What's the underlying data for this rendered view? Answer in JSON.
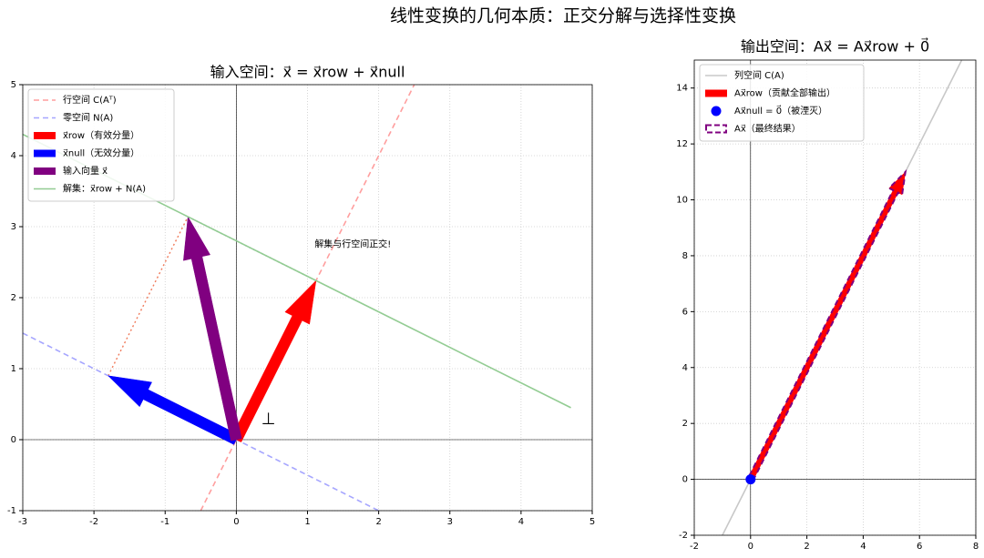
{
  "title": "线性变换的几何本质：正交分解与选择性变换",
  "chart_data": [
    {
      "type": "vector",
      "title": "输入空间：x⃗ = x⃗row + x⃗null",
      "xlim": [
        -3,
        5
      ],
      "ylim": [
        -1,
        5
      ],
      "xticks": [
        -3,
        -2,
        -1,
        0,
        1,
        2,
        3,
        4,
        5
      ],
      "yticks": [
        -1,
        0,
        1,
        2,
        3,
        4,
        5
      ],
      "grid": true,
      "legend": "upper left",
      "series": [
        {
          "name": "行空间 C(Aᵀ)",
          "kind": "line",
          "style": "dashed",
          "color": "#ff9e9e",
          "x": [
            -0.5,
            2.5
          ],
          "y": [
            -1,
            5
          ]
        },
        {
          "name": "零空间 N(A)",
          "kind": "line",
          "style": "dashed",
          "color": "#a6a6ff",
          "x": [
            -3,
            2
          ],
          "y": [
            1.5,
            -1
          ]
        },
        {
          "name": "x⃗row（有效分量）",
          "kind": "arrow",
          "style": "solid",
          "color": "#ff0000",
          "x": [
            0,
            1.12
          ],
          "y": [
            0,
            2.24
          ]
        },
        {
          "name": "x⃗null（无效分量）",
          "kind": "arrow",
          "style": "solid",
          "color": "#0000ff",
          "x": [
            0,
            -1.8
          ],
          "y": [
            0,
            0.9
          ]
        },
        {
          "name": "输入向量 x⃗",
          "kind": "arrow",
          "style": "solid",
          "color": "#800080",
          "x": [
            0,
            -0.68
          ],
          "y": [
            0,
            3.14
          ]
        },
        {
          "name": "解集：x⃗row + N(A)",
          "kind": "line",
          "style": "solid",
          "color": "#93cc93",
          "x": [
            -3,
            4.7
          ],
          "y": [
            4.3,
            0.45
          ]
        }
      ],
      "guides": [
        {
          "kind": "line",
          "style": "dotted",
          "color": "#6a8a9a",
          "x": [
            -0.68,
            1.12
          ],
          "y": [
            3.14,
            2.24
          ]
        },
        {
          "kind": "line",
          "style": "dotted",
          "color": "#f07a5a",
          "x": [
            -1.8,
            -0.68
          ],
          "y": [
            0.9,
            3.14
          ]
        }
      ],
      "annotations": [
        {
          "text": "解集与行空间正交!",
          "x": 1.1,
          "y": 2.75,
          "color": "#008000",
          "size": 10
        },
        {
          "text": "⊥",
          "x": 0.35,
          "y": 0.28,
          "color": "#000000",
          "size": 18
        }
      ]
    },
    {
      "type": "vector",
      "title": "输出空间：Ax⃗ = Ax⃗row + 0⃗",
      "xlim": [
        -2,
        8
      ],
      "ylim": [
        -2,
        15
      ],
      "xticks": [
        -2,
        0,
        2,
        4,
        6,
        8
      ],
      "yticks": [
        -2,
        0,
        2,
        4,
        6,
        8,
        10,
        12,
        14
      ],
      "grid": true,
      "legend": "upper left",
      "series": [
        {
          "name": "列空间 C(A)",
          "kind": "line",
          "style": "solid",
          "color": "#c8c8c8",
          "x": [
            -1,
            7.5
          ],
          "y": [
            -2,
            15
          ]
        },
        {
          "name": "Ax⃗row（贡献全部输出）",
          "kind": "arrow",
          "style": "solid",
          "color": "#ff0000",
          "x": [
            0,
            5.5
          ],
          "y": [
            0,
            11
          ]
        },
        {
          "name": "Ax⃗null = 0⃗（被湮灭）",
          "kind": "point",
          "style": "solid",
          "color": "#0000ff",
          "x": [
            0
          ],
          "y": [
            0
          ]
        },
        {
          "name": "Ax⃗（最终结果）",
          "kind": "arrow",
          "style": "dashed",
          "color": "#800080",
          "x": [
            0,
            5.5
          ],
          "y": [
            0,
            11
          ]
        }
      ],
      "guides": [],
      "annotations": []
    }
  ]
}
